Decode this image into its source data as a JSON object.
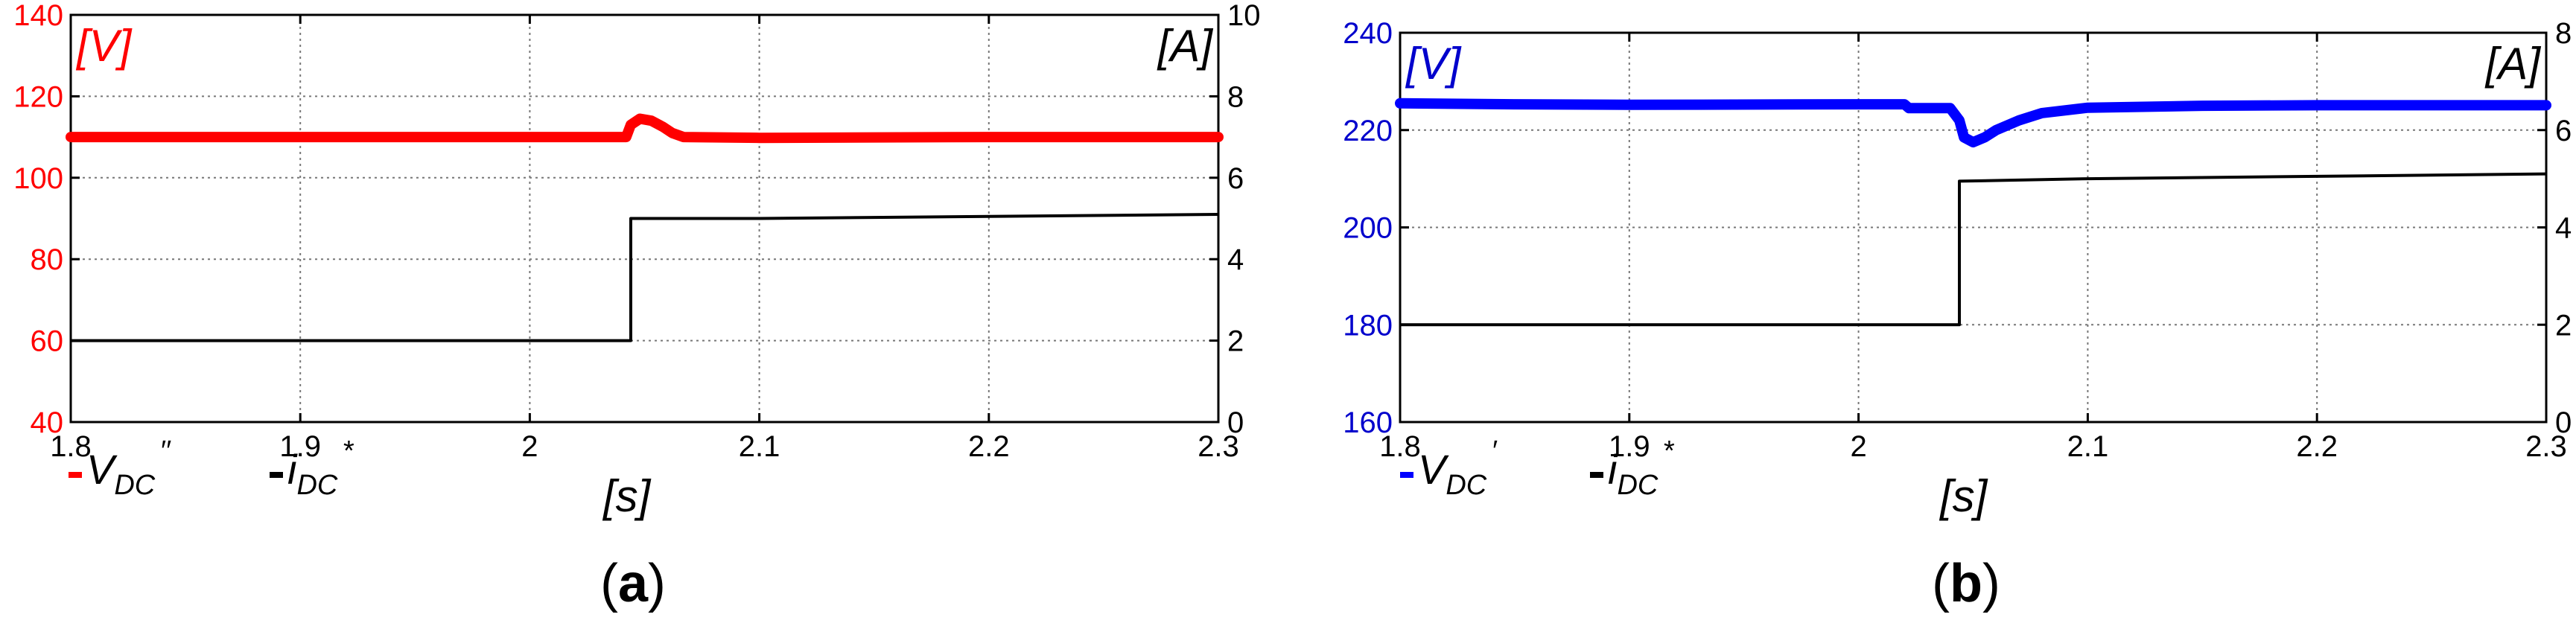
{
  "chart_data": [
    {
      "type": "line",
      "panel_label": "(a)",
      "x_unit_label": "[s]",
      "left_unit_label": "[V]",
      "right_unit_label": "[A]",
      "xlim": [
        1.8,
        2.3
      ],
      "x_ticks": [
        "1.8",
        "1.9",
        "2",
        "2.1",
        "2.2",
        "2.3"
      ],
      "y_left": {
        "range": [
          40,
          140
        ],
        "ticks": [
          "40",
          "60",
          "80",
          "100",
          "120",
          "140"
        ],
        "color": "#ff0000"
      },
      "y_right": {
        "range": [
          0,
          10
        ],
        "ticks": [
          "0",
          "2",
          "4",
          "6",
          "8",
          "10"
        ],
        "color": "#000000"
      },
      "grid": true,
      "legend": [
        {
          "name": "V_DC''",
          "base": "V",
          "sub": "DC",
          "sup": "′′",
          "color": "#ff0000"
        },
        {
          "name": "i_DC*",
          "base": "i",
          "sub": "DC",
          "sup": "*",
          "color": "#000000"
        }
      ],
      "series": [
        {
          "name": "V_DC''",
          "axis": "left",
          "color": "#ff0000",
          "points": [
            [
              1.8,
              110
            ],
            [
              1.9,
              110
            ],
            [
              2.0,
              110
            ],
            [
              2.042,
              110
            ],
            [
              2.044,
              113
            ],
            [
              2.048,
              114.5
            ],
            [
              2.053,
              114
            ],
            [
              2.058,
              112.5
            ],
            [
              2.062,
              111
            ],
            [
              2.067,
              110
            ],
            [
              2.1,
              109.8
            ],
            [
              2.2,
              110
            ],
            [
              2.3,
              110
            ]
          ]
        },
        {
          "name": "i_DC*",
          "axis": "right",
          "color": "#000000",
          "points": [
            [
              1.8,
              2
            ],
            [
              2.044,
              2
            ],
            [
              2.044,
              5
            ],
            [
              2.1,
              5
            ],
            [
              2.2,
              5.05
            ],
            [
              2.3,
              5.1
            ]
          ]
        }
      ]
    },
    {
      "type": "line",
      "panel_label": "(b)",
      "x_unit_label": "[s]",
      "left_unit_label": "[V]",
      "right_unit_label": "[A]",
      "xlim": [
        1.8,
        2.3
      ],
      "x_ticks": [
        "1.8",
        "1.9",
        "2",
        "2.1",
        "2.2",
        "2.3"
      ],
      "y_left": {
        "range": [
          160,
          240
        ],
        "ticks": [
          "160",
          "180",
          "200",
          "220",
          "240"
        ],
        "color": "#0000cc"
      },
      "y_right": {
        "range": [
          0,
          8
        ],
        "ticks": [
          "0",
          "2",
          "4",
          "6",
          "8"
        ],
        "color": "#000000"
      },
      "grid": true,
      "legend": [
        {
          "name": "V_DC'",
          "base": "V",
          "sub": "DC",
          "sup": "′",
          "color": "#0000ff"
        },
        {
          "name": "i_DC*",
          "base": "i",
          "sub": "DC",
          "sup": "*",
          "color": "#000000"
        }
      ],
      "series": [
        {
          "name": "V_DC'",
          "axis": "left",
          "color": "#0000ff",
          "points": [
            [
              1.8,
              225.5
            ],
            [
              1.85,
              225.3
            ],
            [
              1.9,
              225.2
            ],
            [
              2.0,
              225.3
            ],
            [
              2.02,
              225.3
            ],
            [
              2.022,
              224.5
            ],
            [
              2.04,
              224.5
            ],
            [
              2.044,
              222
            ],
            [
              2.046,
              218.5
            ],
            [
              2.05,
              217.5
            ],
            [
              2.055,
              218.5
            ],
            [
              2.06,
              220
            ],
            [
              2.07,
              222
            ],
            [
              2.08,
              223.5
            ],
            [
              2.1,
              224.6
            ],
            [
              2.15,
              225
            ],
            [
              2.2,
              225.1
            ],
            [
              2.3,
              225.1
            ]
          ]
        },
        {
          "name": "i_DC*",
          "axis": "right",
          "color": "#000000",
          "points": [
            [
              1.8,
              2
            ],
            [
              2.044,
              2
            ],
            [
              2.044,
              4.95
            ],
            [
              2.1,
              5
            ],
            [
              2.2,
              5.05
            ],
            [
              2.3,
              5.1
            ]
          ]
        }
      ]
    }
  ]
}
